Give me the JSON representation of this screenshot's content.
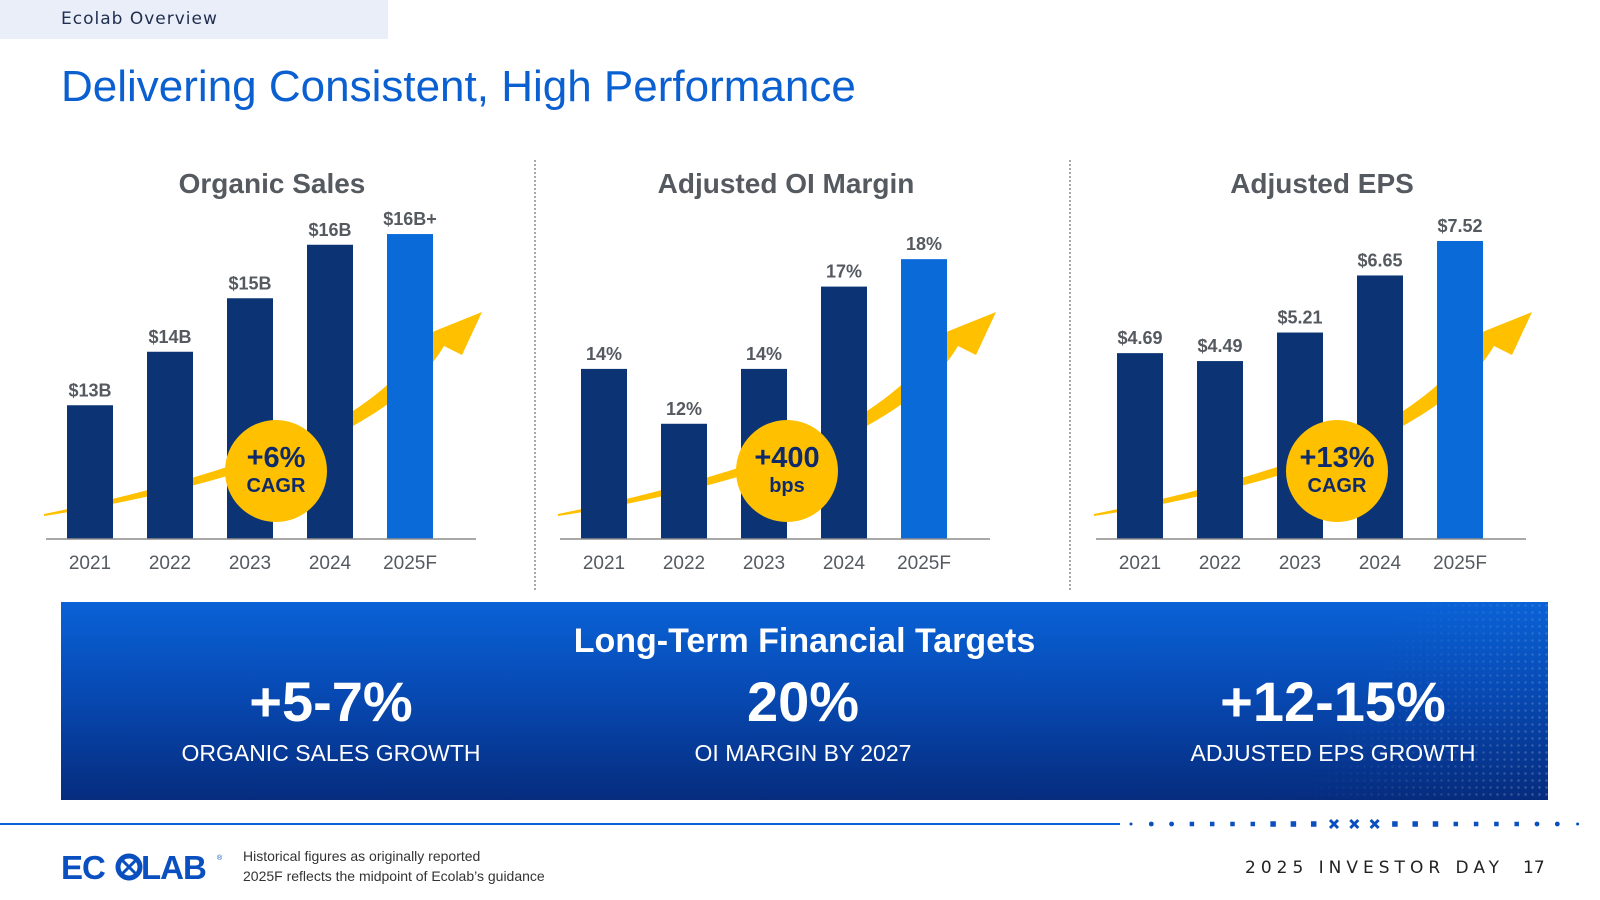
{
  "header": {
    "section_tab": "Ecolab Overview",
    "title": "Delivering Consistent, High Performance"
  },
  "colors": {
    "historical_bar": "#0c3474",
    "forecast_bar": "#0a6ad8",
    "accent_yellow": "#ffc000",
    "title_blue": "#0a5fd1"
  },
  "chart_data": [
    {
      "type": "bar",
      "title": "Organic Sales",
      "categories": [
        "2021",
        "2022",
        "2023",
        "2024",
        "2025F"
      ],
      "values": [
        13,
        14,
        15,
        16,
        16.2
      ],
      "data_labels": [
        "$13B",
        "$14B",
        "$15B",
        "$16B",
        "$16B+"
      ],
      "ylim": [
        10.5,
        16.5
      ],
      "forecast_index": 4,
      "callout": {
        "value": "+6%",
        "label": "CAGR"
      }
    },
    {
      "type": "bar",
      "title": "Adjusted OI Margin",
      "categories": [
        "2021",
        "2022",
        "2023",
        "2024",
        "2025F"
      ],
      "values": [
        14,
        12,
        14,
        17,
        18
      ],
      "data_labels": [
        "14%",
        "12%",
        "14%",
        "17%",
        "18%"
      ],
      "ylim": [
        7.8,
        19.5
      ],
      "forecast_index": 4,
      "callout": {
        "value": "+400",
        "label": "bps"
      }
    },
    {
      "type": "bar",
      "title": "Adjusted EPS",
      "categories": [
        "2021",
        "2022",
        "2023",
        "2024",
        "2025F"
      ],
      "values": [
        4.69,
        4.49,
        5.21,
        6.65,
        7.52
      ],
      "data_labels": [
        "$4.69",
        "$4.49",
        "$5.21",
        "$6.65",
        "$7.52"
      ],
      "ylim": [
        0,
        8.1
      ],
      "forecast_index": 4,
      "callout": {
        "value": "+13%",
        "label": "CAGR"
      }
    }
  ],
  "targets": {
    "title": "Long-Term Financial Targets",
    "items": [
      {
        "value": "+5-7%",
        "label": "ORGANIC SALES GROWTH"
      },
      {
        "value": "20%",
        "label": "OI MARGIN BY 2027"
      },
      {
        "value": "+12-15%",
        "label": "ADJUSTED EPS GROWTH"
      }
    ]
  },
  "footer": {
    "logo_text": "ECOLAB",
    "notes": [
      "Historical figures as originally reported",
      "2025F reflects the midpoint of Ecolab’s guidance"
    ],
    "event": "2025 INVESTOR DAY",
    "page": "17"
  }
}
